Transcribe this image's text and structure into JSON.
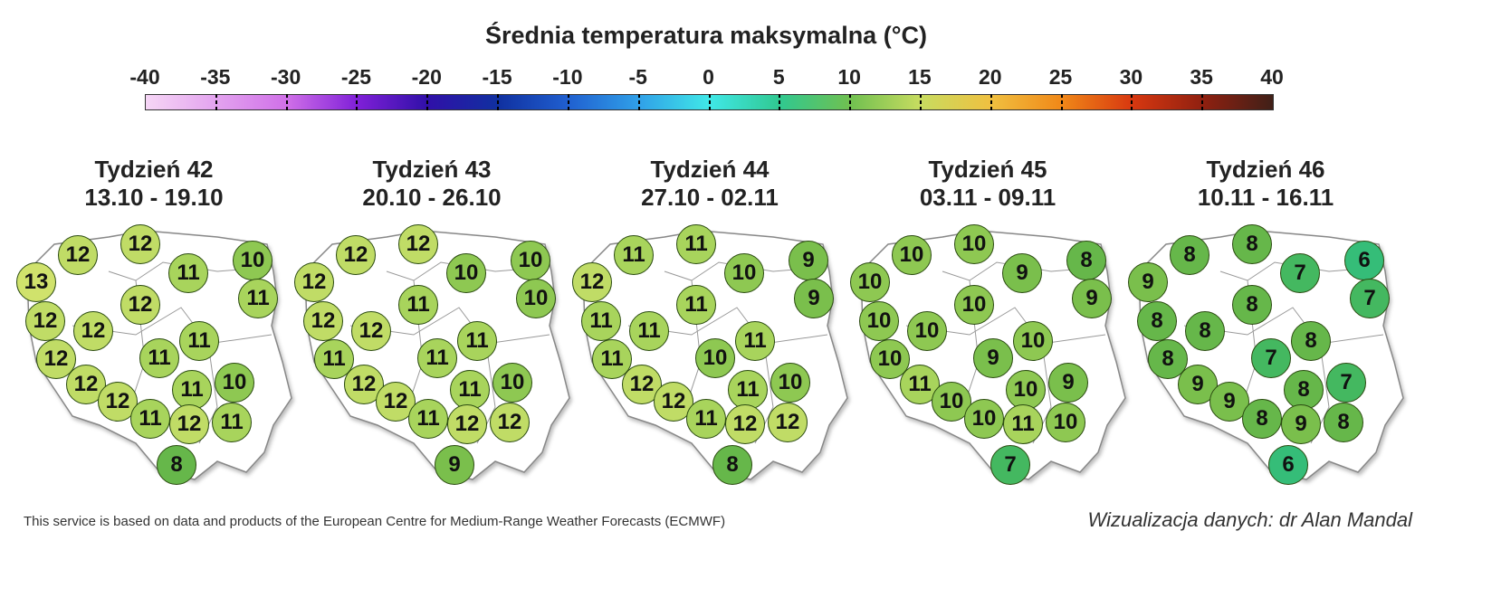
{
  "title": "Średnia temperatura maksymalna (°C)",
  "colorbar": {
    "ticks": [
      "-40",
      "-35",
      "-30",
      "-25",
      "-20",
      "-15",
      "-10",
      "-5",
      "0",
      "5",
      "10",
      "15",
      "20",
      "25",
      "30",
      "35",
      "40"
    ],
    "range": [
      -40,
      40
    ]
  },
  "value_colors": {
    "6": "#35bd78",
    "7": "#44b860",
    "8": "#66b74a",
    "9": "#7abf4c",
    "10": "#8ec852",
    "11": "#a8d45c",
    "12": "#c0dc66",
    "13": "#d0e26c"
  },
  "weeks": [
    {
      "label": "Tydzień 42",
      "dates": "13.10 - 19.10",
      "values": [
        13,
        12,
        12,
        11,
        10,
        11,
        12,
        12,
        12,
        12,
        11,
        11,
        12,
        10,
        11,
        12,
        11,
        12,
        11,
        8
      ]
    },
    {
      "label": "Tydzień 43",
      "dates": "20.10 - 26.10",
      "values": [
        12,
        12,
        12,
        10,
        10,
        10,
        11,
        12,
        12,
        11,
        11,
        11,
        12,
        10,
        11,
        12,
        11,
        12,
        12,
        9
      ]
    },
    {
      "label": "Tydzień 44",
      "dates": "27.10 - 02.11",
      "values": [
        12,
        11,
        11,
        10,
        9,
        9,
        11,
        11,
        11,
        11,
        10,
        11,
        12,
        10,
        11,
        12,
        11,
        12,
        12,
        8
      ]
    },
    {
      "label": "Tydzień 45",
      "dates": "03.11 - 09.11",
      "values": [
        10,
        10,
        10,
        9,
        8,
        9,
        10,
        10,
        10,
        10,
        9,
        10,
        11,
        9,
        10,
        10,
        10,
        11,
        10,
        7
      ]
    },
    {
      "label": "Tydzień 46",
      "dates": "10.11 - 16.11",
      "values": [
        9,
        8,
        8,
        7,
        6,
        7,
        8,
        8,
        8,
        8,
        7,
        8,
        9,
        7,
        8,
        9,
        8,
        9,
        8,
        6
      ]
    }
  ],
  "footer": "This service is based on data and products of the European Centre for Medium-Range Weather Forecasts (ECMWF)",
  "signature": "Wizualizacja danych: dr Alan Mandal"
}
